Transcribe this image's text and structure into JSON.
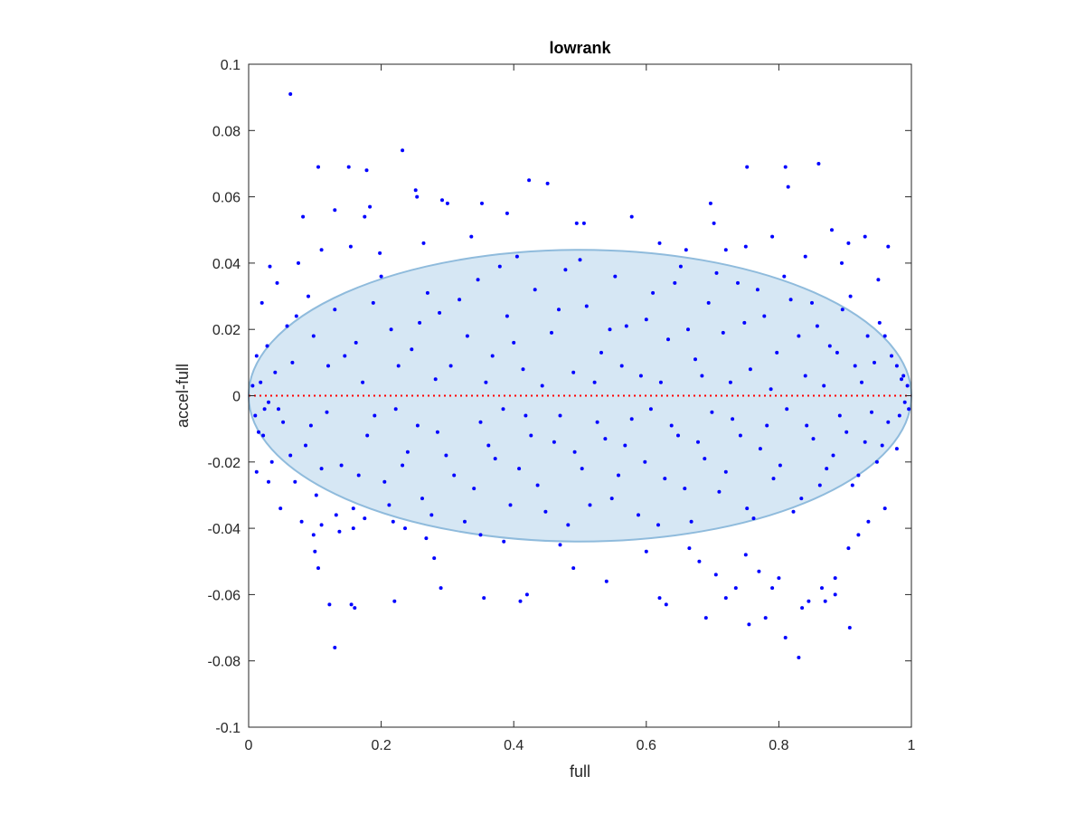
{
  "chart_data": {
    "type": "scatter",
    "title": "lowrank",
    "xlabel": "full",
    "ylabel": "accel-full",
    "xlim": [
      0,
      1
    ],
    "ylim": [
      -0.1,
      0.1
    ],
    "xticks": [
      0,
      0.2,
      0.4,
      0.6,
      0.8,
      1
    ],
    "xtick_labels": [
      "0",
      "0.2",
      "0.4",
      "0.6",
      "0.8",
      "1"
    ],
    "yticks": [
      -0.1,
      -0.08,
      -0.06,
      -0.04,
      -0.02,
      0,
      0.02,
      0.04,
      0.06,
      0.08,
      0.1
    ],
    "ytick_labels": [
      "-0.1",
      "-0.08",
      "-0.06",
      "-0.04",
      "-0.02",
      "0",
      "0.02",
      "0.04",
      "0.06",
      "0.08",
      "0.1"
    ],
    "grid": false,
    "legend": "none",
    "colors": {
      "points": "#0000ff",
      "zero_line": "#ff0000",
      "ellipse_fill": "#d6e7f4",
      "ellipse_stroke": "#8fbbdc",
      "axis": "#262626"
    },
    "reference_line": {
      "y": 0,
      "style": "dotted"
    },
    "envelope": {
      "shape": "ellipse",
      "center": [
        0.5,
        0
      ],
      "x_half_width": 0.5,
      "y_half_height": 0.044
    },
    "series": [
      {
        "points": [
          [
            0.063,
            0.091
          ],
          [
            0.232,
            0.074
          ],
          [
            0.423,
            0.065
          ],
          [
            0.451,
            0.064
          ],
          [
            0.105,
            0.069
          ],
          [
            0.151,
            0.069
          ],
          [
            0.178,
            0.068
          ],
          [
            0.752,
            0.069
          ],
          [
            0.81,
            0.069
          ],
          [
            0.86,
            0.07
          ],
          [
            0.814,
            0.063
          ],
          [
            0.252,
            0.062
          ],
          [
            0.254,
            0.06
          ],
          [
            0.292,
            0.059
          ],
          [
            0.3,
            0.058
          ],
          [
            0.352,
            0.058
          ],
          [
            0.697,
            0.058
          ],
          [
            0.13,
            0.056
          ],
          [
            0.183,
            0.057
          ],
          [
            0.082,
            0.054
          ],
          [
            0.175,
            0.054
          ],
          [
            0.39,
            0.055
          ],
          [
            0.578,
            0.054
          ],
          [
            0.702,
            0.052
          ],
          [
            0.495,
            0.052
          ],
          [
            0.506,
            0.052
          ],
          [
            0.032,
            0.039
          ],
          [
            0.043,
            0.034
          ],
          [
            0.075,
            0.04
          ],
          [
            0.11,
            0.044
          ],
          [
            0.154,
            0.045
          ],
          [
            0.198,
            0.043
          ],
          [
            0.264,
            0.046
          ],
          [
            0.336,
            0.048
          ],
          [
            0.405,
            0.042
          ],
          [
            0.62,
            0.046
          ],
          [
            0.75,
            0.045
          ],
          [
            0.79,
            0.048
          ],
          [
            0.88,
            0.05
          ],
          [
            0.905,
            0.046
          ],
          [
            0.93,
            0.048
          ],
          [
            0.965,
            0.045
          ],
          [
            0.84,
            0.042
          ],
          [
            0.895,
            0.04
          ],
          [
            0.95,
            0.035
          ],
          [
            0.72,
            0.044
          ],
          [
            0.66,
            0.044
          ],
          [
            0.02,
            0.028
          ],
          [
            0.028,
            0.015
          ],
          [
            0.058,
            0.021
          ],
          [
            0.072,
            0.024
          ],
          [
            0.098,
            0.018
          ],
          [
            0.12,
            0.009
          ],
          [
            0.145,
            0.012
          ],
          [
            0.162,
            0.016
          ],
          [
            0.188,
            0.028
          ],
          [
            0.215,
            0.02
          ],
          [
            0.246,
            0.014
          ],
          [
            0.27,
            0.031
          ],
          [
            0.288,
            0.025
          ],
          [
            0.305,
            0.009
          ],
          [
            0.33,
            0.018
          ],
          [
            0.346,
            0.035
          ],
          [
            0.368,
            0.012
          ],
          [
            0.39,
            0.024
          ],
          [
            0.414,
            0.008
          ],
          [
            0.432,
            0.032
          ],
          [
            0.457,
            0.019
          ],
          [
            0.478,
            0.038
          ],
          [
            0.49,
            0.007
          ],
          [
            0.51,
            0.027
          ],
          [
            0.532,
            0.013
          ],
          [
            0.553,
            0.036
          ],
          [
            0.57,
            0.021
          ],
          [
            0.592,
            0.006
          ],
          [
            0.61,
            0.031
          ],
          [
            0.633,
            0.017
          ],
          [
            0.652,
            0.039
          ],
          [
            0.674,
            0.011
          ],
          [
            0.694,
            0.028
          ],
          [
            0.716,
            0.019
          ],
          [
            0.738,
            0.034
          ],
          [
            0.757,
            0.008
          ],
          [
            0.778,
            0.024
          ],
          [
            0.797,
            0.013
          ],
          [
            0.818,
            0.029
          ],
          [
            0.84,
            0.006
          ],
          [
            0.858,
            0.021
          ],
          [
            0.877,
            0.015
          ],
          [
            0.896,
            0.026
          ],
          [
            0.915,
            0.009
          ],
          [
            0.934,
            0.018
          ],
          [
            0.952,
            0.022
          ],
          [
            0.97,
            0.012
          ],
          [
            0.985,
            0.005
          ],
          [
            0.04,
            0.007
          ],
          [
            0.066,
            0.01
          ],
          [
            0.09,
            0.03
          ],
          [
            0.13,
            0.026
          ],
          [
            0.172,
            0.004
          ],
          [
            0.2,
            0.036
          ],
          [
            0.226,
            0.009
          ],
          [
            0.258,
            0.022
          ],
          [
            0.282,
            0.005
          ],
          [
            0.318,
            0.029
          ],
          [
            0.358,
            0.004
          ],
          [
            0.379,
            0.039
          ],
          [
            0.4,
            0.016
          ],
          [
            0.443,
            0.003
          ],
          [
            0.468,
            0.026
          ],
          [
            0.5,
            0.041
          ],
          [
            0.522,
            0.004
          ],
          [
            0.545,
            0.02
          ],
          [
            0.563,
            0.009
          ],
          [
            0.6,
            0.023
          ],
          [
            0.622,
            0.004
          ],
          [
            0.643,
            0.034
          ],
          [
            0.663,
            0.02
          ],
          [
            0.684,
            0.006
          ],
          [
            0.706,
            0.037
          ],
          [
            0.727,
            0.004
          ],
          [
            0.748,
            0.022
          ],
          [
            0.768,
            0.032
          ],
          [
            0.788,
            0.002
          ],
          [
            0.808,
            0.036
          ],
          [
            0.83,
            0.018
          ],
          [
            0.85,
            0.028
          ],
          [
            0.868,
            0.003
          ],
          [
            0.888,
            0.013
          ],
          [
            0.908,
            0.03
          ],
          [
            0.925,
            0.004
          ],
          [
            0.944,
            0.01
          ],
          [
            0.96,
            0.018
          ],
          [
            0.978,
            0.009
          ],
          [
            0.006,
            0.003
          ],
          [
            0.012,
            0.012
          ],
          [
            0.018,
            0.004
          ],
          [
            0.024,
            -0.004
          ],
          [
            0.01,
            -0.006
          ],
          [
            0.015,
            -0.011
          ],
          [
            0.03,
            -0.002
          ],
          [
            0.994,
            0.003
          ],
          [
            0.99,
            -0.002
          ],
          [
            0.996,
            -0.004
          ],
          [
            0.988,
            0.006
          ],
          [
            0.982,
            -0.006
          ],
          [
            0.022,
            -0.012
          ],
          [
            0.035,
            -0.02
          ],
          [
            0.052,
            -0.008
          ],
          [
            0.07,
            -0.026
          ],
          [
            0.086,
            -0.015
          ],
          [
            0.102,
            -0.03
          ],
          [
            0.118,
            -0.005
          ],
          [
            0.14,
            -0.021
          ],
          [
            0.158,
            -0.034
          ],
          [
            0.179,
            -0.012
          ],
          [
            0.205,
            -0.026
          ],
          [
            0.222,
            -0.004
          ],
          [
            0.24,
            -0.017
          ],
          [
            0.262,
            -0.031
          ],
          [
            0.285,
            -0.011
          ],
          [
            0.31,
            -0.024
          ],
          [
            0.326,
            -0.038
          ],
          [
            0.35,
            -0.008
          ],
          [
            0.372,
            -0.019
          ],
          [
            0.395,
            -0.033
          ],
          [
            0.418,
            -0.006
          ],
          [
            0.436,
            -0.027
          ],
          [
            0.461,
            -0.014
          ],
          [
            0.482,
            -0.039
          ],
          [
            0.503,
            -0.022
          ],
          [
            0.526,
            -0.008
          ],
          [
            0.548,
            -0.031
          ],
          [
            0.568,
            -0.015
          ],
          [
            0.588,
            -0.036
          ],
          [
            0.607,
            -0.004
          ],
          [
            0.628,
            -0.025
          ],
          [
            0.648,
            -0.012
          ],
          [
            0.668,
            -0.038
          ],
          [
            0.688,
            -0.019
          ],
          [
            0.71,
            -0.029
          ],
          [
            0.73,
            -0.007
          ],
          [
            0.752,
            -0.034
          ],
          [
            0.772,
            -0.016
          ],
          [
            0.792,
            -0.025
          ],
          [
            0.812,
            -0.004
          ],
          [
            0.834,
            -0.031
          ],
          [
            0.852,
            -0.013
          ],
          [
            0.872,
            -0.022
          ],
          [
            0.892,
            -0.006
          ],
          [
            0.911,
            -0.027
          ],
          [
            0.93,
            -0.014
          ],
          [
            0.948,
            -0.02
          ],
          [
            0.965,
            -0.008
          ],
          [
            0.978,
            -0.016
          ],
          [
            0.045,
            -0.004
          ],
          [
            0.063,
            -0.018
          ],
          [
            0.094,
            -0.009
          ],
          [
            0.11,
            -0.022
          ],
          [
            0.132,
            -0.036
          ],
          [
            0.166,
            -0.024
          ],
          [
            0.19,
            -0.006
          ],
          [
            0.212,
            -0.033
          ],
          [
            0.232,
            -0.021
          ],
          [
            0.255,
            -0.009
          ],
          [
            0.276,
            -0.036
          ],
          [
            0.298,
            -0.018
          ],
          [
            0.34,
            -0.028
          ],
          [
            0.362,
            -0.015
          ],
          [
            0.384,
            -0.004
          ],
          [
            0.408,
            -0.022
          ],
          [
            0.426,
            -0.012
          ],
          [
            0.448,
            -0.035
          ],
          [
            0.47,
            -0.006
          ],
          [
            0.492,
            -0.017
          ],
          [
            0.515,
            -0.033
          ],
          [
            0.538,
            -0.013
          ],
          [
            0.558,
            -0.024
          ],
          [
            0.578,
            -0.007
          ],
          [
            0.598,
            -0.02
          ],
          [
            0.618,
            -0.039
          ],
          [
            0.638,
            -0.009
          ],
          [
            0.658,
            -0.028
          ],
          [
            0.678,
            -0.014
          ],
          [
            0.699,
            -0.005
          ],
          [
            0.72,
            -0.023
          ],
          [
            0.742,
            -0.012
          ],
          [
            0.762,
            -0.037
          ],
          [
            0.782,
            -0.009
          ],
          [
            0.802,
            -0.021
          ],
          [
            0.822,
            -0.035
          ],
          [
            0.842,
            -0.009
          ],
          [
            0.862,
            -0.027
          ],
          [
            0.882,
            -0.018
          ],
          [
            0.902,
            -0.011
          ],
          [
            0.92,
            -0.024
          ],
          [
            0.94,
            -0.005
          ],
          [
            0.956,
            -0.015
          ],
          [
            0.012,
            -0.023
          ],
          [
            0.03,
            -0.026
          ],
          [
            0.048,
            -0.034
          ],
          [
            0.08,
            -0.038
          ],
          [
            0.098,
            -0.042
          ],
          [
            0.1,
            -0.047
          ],
          [
            0.105,
            -0.052
          ],
          [
            0.11,
            -0.039
          ],
          [
            0.137,
            -0.041
          ],
          [
            0.158,
            -0.04
          ],
          [
            0.175,
            -0.037
          ],
          [
            0.218,
            -0.038
          ],
          [
            0.236,
            -0.04
          ],
          [
            0.268,
            -0.043
          ],
          [
            0.28,
            -0.049
          ],
          [
            0.29,
            -0.058
          ],
          [
            0.35,
            -0.042
          ],
          [
            0.385,
            -0.044
          ],
          [
            0.41,
            -0.062
          ],
          [
            0.42,
            -0.06
          ],
          [
            0.47,
            -0.045
          ],
          [
            0.49,
            -0.052
          ],
          [
            0.54,
            -0.056
          ],
          [
            0.62,
            -0.061
          ],
          [
            0.63,
            -0.063
          ],
          [
            0.665,
            -0.046
          ],
          [
            0.68,
            -0.05
          ],
          [
            0.69,
            -0.067
          ],
          [
            0.705,
            -0.054
          ],
          [
            0.72,
            -0.061
          ],
          [
            0.735,
            -0.058
          ],
          [
            0.75,
            -0.048
          ],
          [
            0.755,
            -0.069
          ],
          [
            0.77,
            -0.053
          ],
          [
            0.78,
            -0.067
          ],
          [
            0.79,
            -0.058
          ],
          [
            0.8,
            -0.055
          ],
          [
            0.81,
            -0.073
          ],
          [
            0.83,
            -0.079
          ],
          [
            0.835,
            -0.064
          ],
          [
            0.845,
            -0.062
          ],
          [
            0.865,
            -0.058
          ],
          [
            0.885,
            -0.055
          ],
          [
            0.905,
            -0.046
          ],
          [
            0.907,
            -0.07
          ],
          [
            0.92,
            -0.042
          ],
          [
            0.935,
            -0.038
          ],
          [
            0.96,
            -0.034
          ],
          [
            0.122,
            -0.063
          ],
          [
            0.13,
            -0.076
          ],
          [
            0.155,
            -0.063
          ],
          [
            0.16,
            -0.064
          ],
          [
            0.22,
            -0.062
          ],
          [
            0.355,
            -0.061
          ],
          [
            0.6,
            -0.047
          ],
          [
            0.87,
            -0.062
          ],
          [
            0.885,
            -0.06
          ]
        ]
      }
    ]
  }
}
